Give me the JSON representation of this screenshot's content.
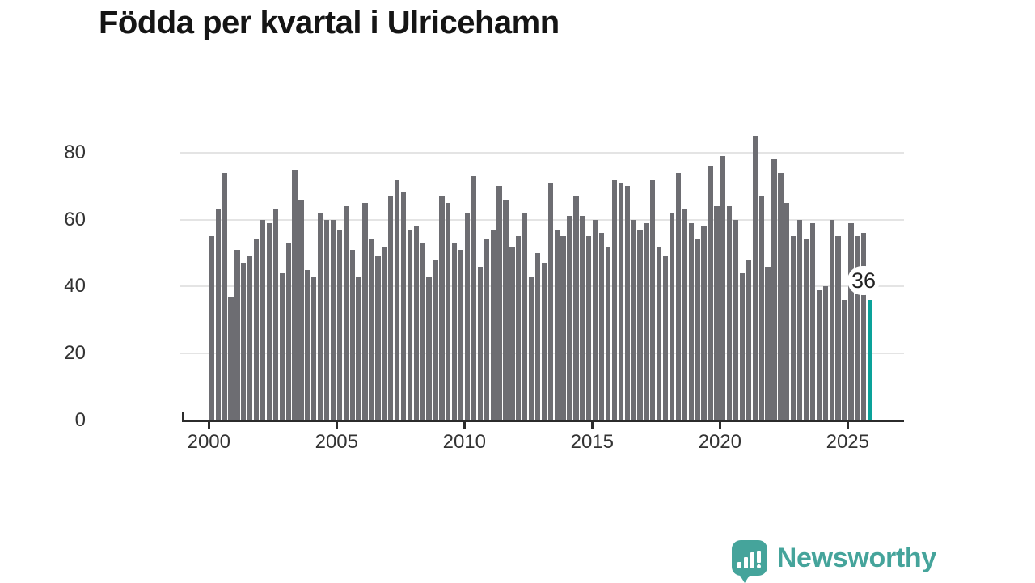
{
  "title": "Födda per kvartal i Ulricehamn",
  "colors": {
    "bar": "#6d6d72",
    "highlight": "#0aa29a",
    "axis": "#2b2b2b",
    "grid": "#e4e4e4",
    "tick_text": "#333333",
    "title_text": "#151515",
    "logo_teal": "#45a49b",
    "badge_bg": "#ffffff",
    "background": "#ffffff"
  },
  "logo": {
    "text": "Newsworthy"
  },
  "annotation": {
    "latest_value_label": "36"
  },
  "chart_data": {
    "type": "bar",
    "title": "Födda per kvartal i Ulricehamn",
    "xlabel": "",
    "ylabel": "",
    "x_start": "2000K1",
    "x_end": "2025K4",
    "frequency": "quarterly",
    "x_tick_labels": [
      "2000",
      "2005",
      "2010",
      "2015",
      "2020",
      "2025"
    ],
    "y_tick_labels": [
      "0",
      "20",
      "40",
      "60",
      "80"
    ],
    "y_ticks": [
      0,
      20,
      40,
      60,
      80
    ],
    "ylim": [
      0,
      88
    ],
    "grid": "horizontal",
    "legend_position": "none",
    "highlight_index": 103,
    "highlight_value": 36,
    "series": [
      {
        "name": "Födda per kvartal",
        "values": [
          55,
          63,
          74,
          37,
          51,
          47,
          49,
          54,
          60,
          59,
          63,
          44,
          53,
          75,
          66,
          45,
          43,
          62,
          60,
          60,
          57,
          64,
          51,
          43,
          65,
          54,
          49,
          52,
          67,
          72,
          68,
          57,
          58,
          53,
          43,
          48,
          67,
          65,
          53,
          51,
          62,
          73,
          46,
          54,
          57,
          70,
          66,
          52,
          55,
          62,
          43,
          50,
          47,
          71,
          57,
          55,
          61,
          67,
          61,
          55,
          60,
          56,
          52,
          72,
          71,
          70,
          60,
          57,
          59,
          72,
          52,
          49,
          62,
          74,
          63,
          59,
          54,
          58,
          76,
          64,
          79,
          64,
          60,
          44,
          48,
          85,
          67,
          46,
          78,
          74,
          65,
          55,
          60,
          54,
          59,
          39,
          40,
          60,
          55,
          36,
          59,
          55,
          56,
          36
        ]
      }
    ]
  }
}
